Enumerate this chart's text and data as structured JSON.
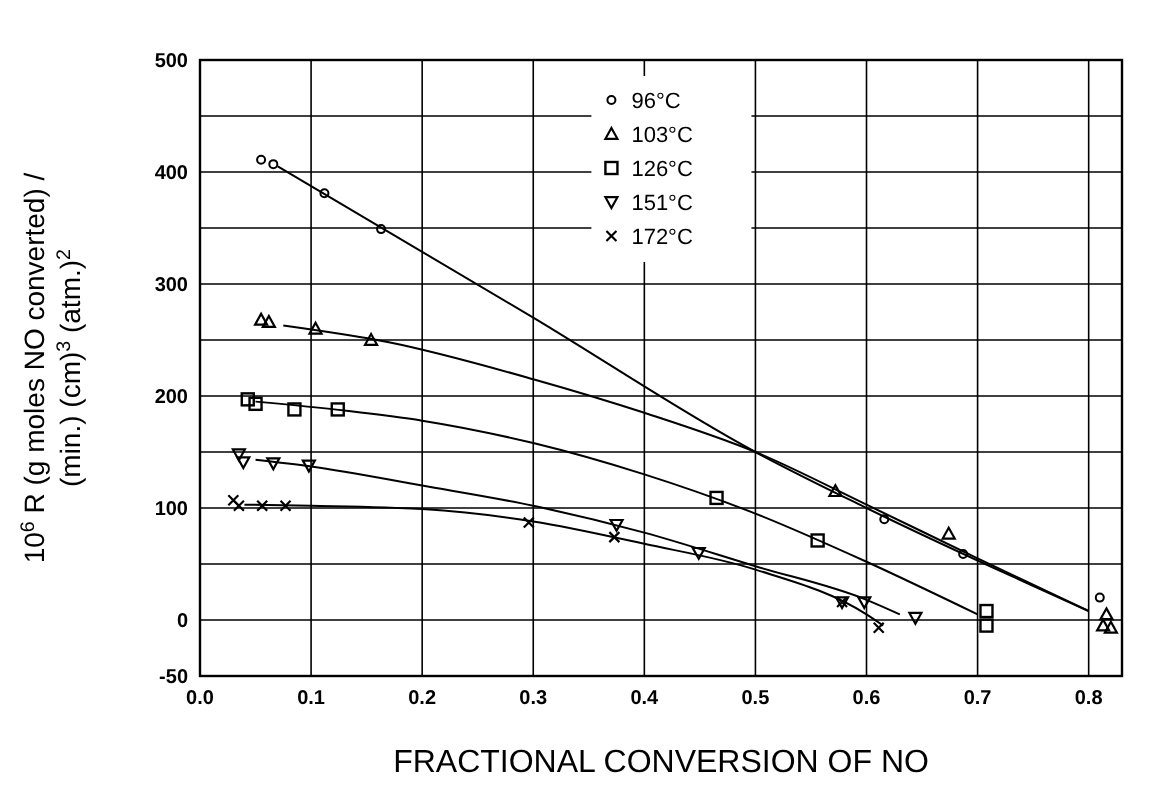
{
  "chart_data": {
    "type": "scatter",
    "xlabel": "FRACTIONAL CONVERSION OF NO",
    "ylabel": "10$^{6}$ R (g moles NO converted) / (min.) (cm)$^{3}$ (atm.)$^{2}$",
    "xlim": [
      0,
      0.83
    ],
    "ylim": [
      -50,
      500
    ],
    "xticks": [
      {
        "value": 0,
        "label": "0.0"
      },
      0.1,
      0.2,
      0.3,
      0.4,
      0.5,
      0.6,
      0.7,
      0.8
    ],
    "yticks": [
      {
        "value": -50,
        "label": "-50"
      },
      0,
      {
        "value": 50,
        "label": null
      },
      100,
      {
        "value": 150,
        "label": null
      },
      200,
      {
        "value": 250,
        "label": null
      },
      300,
      {
        "value": 350,
        "label": null
      },
      400,
      {
        "value": 450,
        "label": null
      },
      500
    ],
    "grid": true,
    "legend": "top",
    "series": [
      {
        "name": "96°C",
        "color": "#000000",
        "marker": "circle",
        "x": [
          0.055,
          0.066,
          0.112,
          0.163,
          0.616,
          0.687,
          0.81
        ],
        "values": [
          411,
          407,
          381,
          349,
          90,
          59,
          20
        ]
      },
      {
        "name": "103°C",
        "color": "#000000",
        "marker": "triangle",
        "x": [
          0.055,
          0.062,
          0.104,
          0.154,
          0.572,
          0.674,
          0.816,
          0.813,
          0.82
        ],
        "values": [
          268,
          266,
          260,
          250,
          115,
          77,
          5,
          -5,
          -7
        ]
      },
      {
        "name": "126°C",
        "color": "#000000",
        "marker": "square",
        "x": [
          0.043,
          0.05,
          0.085,
          0.124,
          0.465,
          0.556,
          0.708,
          0.708
        ],
        "values": [
          197,
          193,
          188,
          188,
          109,
          71,
          8,
          -5
        ]
      },
      {
        "name": "151°C",
        "color": "#000000",
        "marker": "triangle-down",
        "x": [
          0.035,
          0.039,
          0.066,
          0.098,
          0.375,
          0.449,
          0.578,
          0.598,
          0.644
        ],
        "values": [
          148,
          141,
          140,
          138,
          85,
          60,
          16,
          16,
          2
        ]
      },
      {
        "name": "172°C",
        "color": "#000000",
        "marker": "cross",
        "x": [
          0.03,
          0.035,
          0.056,
          0.077,
          0.296,
          0.373,
          0.578,
          0.611
        ],
        "values": [
          107,
          102,
          102,
          102,
          87,
          74,
          16,
          -7
        ]
      },
      {
        "type": "line",
        "color": "#000000",
        "marker": "none",
        "x": [
          0.07,
          0.3,
          0.5,
          0.6,
          0.8
        ],
        "values": [
          405,
          270,
          150,
          100,
          8
        ]
      },
      {
        "type": "line",
        "color": "#000000",
        "marker": "none",
        "x": [
          0.075,
          0.17,
          0.3,
          0.4,
          0.5,
          0.6,
          0.7,
          0.8
        ],
        "values": [
          263,
          248,
          215,
          185,
          150,
          103,
          55,
          8
        ]
      },
      {
        "type": "line",
        "color": "#000000",
        "marker": "none",
        "x": [
          0.05,
          0.13,
          0.2,
          0.3,
          0.4,
          0.5,
          0.6,
          0.7
        ],
        "values": [
          195,
          187,
          178,
          158,
          130,
          95,
          52,
          5
        ]
      },
      {
        "type": "line",
        "color": "#000000",
        "marker": "none",
        "x": [
          0.05,
          0.1,
          0.2,
          0.3,
          0.4,
          0.5,
          0.6,
          0.63
        ],
        "values": [
          143,
          137,
          120,
          102,
          78,
          48,
          18,
          5
        ]
      },
      {
        "type": "line",
        "color": "#000000",
        "marker": "none",
        "x": [
          0.04,
          0.1,
          0.2,
          0.3,
          0.4,
          0.5,
          0.6,
          0.615
        ],
        "values": [
          103,
          102,
          99,
          88,
          68,
          45,
          5,
          -5
        ]
      }
    ]
  }
}
